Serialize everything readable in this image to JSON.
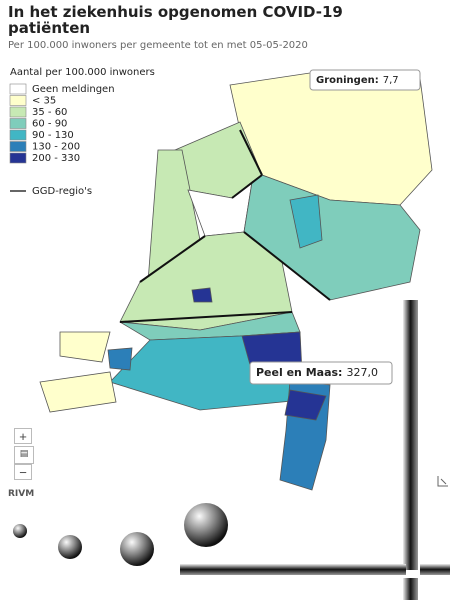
{
  "header": {
    "title": "In het ziekenhuis opgenomen COVID-19 patiënten",
    "subtitle": "Per 100.000 inwoners per gemeente tot en met 05-05-2020"
  },
  "legend": {
    "title": "Aantal per 100.000 inwoners",
    "items": [
      {
        "label": "Geen meldingen",
        "color": "#ffffff"
      },
      {
        "label": "< 35",
        "color": "#ffffcc"
      },
      {
        "label": "35 - 60",
        "color": "#c7e9b4"
      },
      {
        "label": "60 - 90",
        "color": "#7fcdbb"
      },
      {
        "label": "90 - 130",
        "color": "#41b6c4"
      },
      {
        "label": "130 - 200",
        "color": "#2c7fb8"
      },
      {
        "label": "200 - 330",
        "color": "#253494"
      }
    ],
    "boundary": "GGD-regio's"
  },
  "tooltips": [
    {
      "name": "Groningen:",
      "value": "7,7"
    },
    {
      "name": "Peel en Maas:",
      "value": "327,0"
    }
  ],
  "controls": {
    "zoom_in": "+",
    "zoom_out": "−",
    "source": "RIVM"
  }
}
